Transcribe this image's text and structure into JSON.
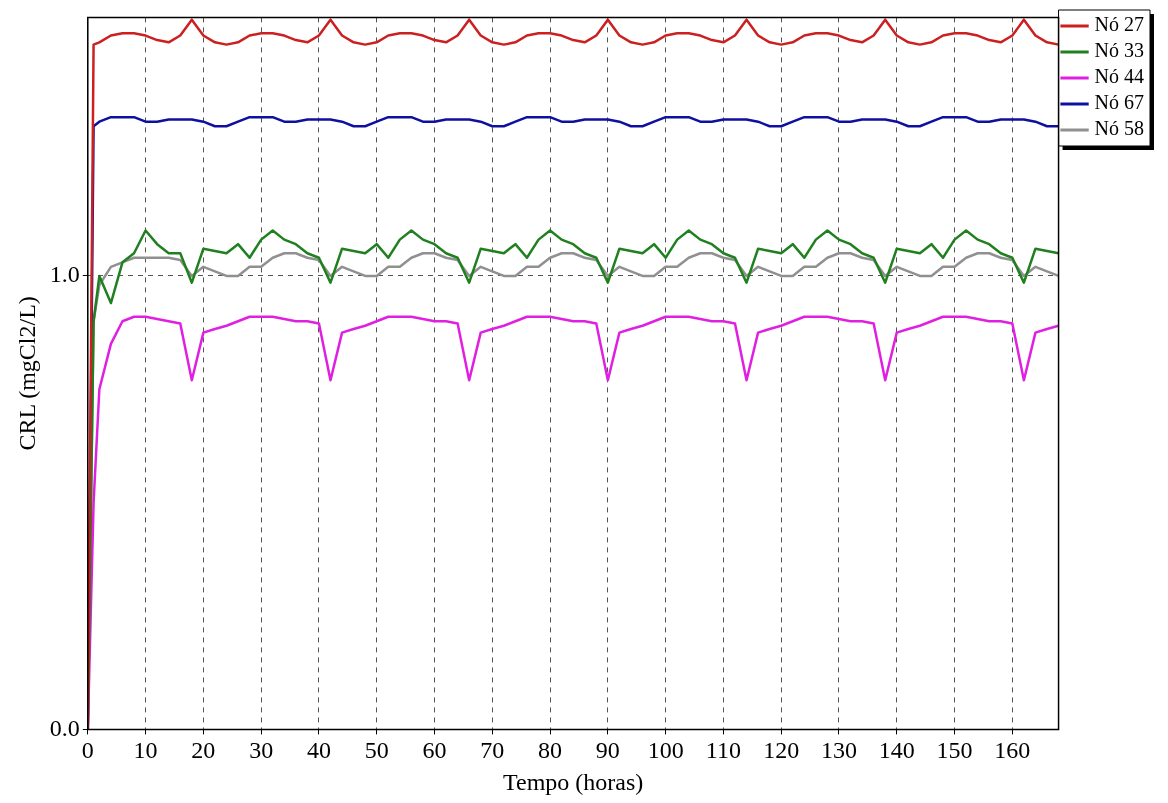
{
  "chart_data": {
    "type": "line",
    "xlabel": "Tempo (horas)",
    "ylabel": "CRL (mgCl2/L)",
    "x": [
      0,
      1,
      2,
      4,
      6,
      8,
      10,
      12,
      14,
      16,
      18,
      20,
      22,
      24,
      26,
      28,
      30,
      32,
      34,
      36,
      38,
      40,
      42,
      44,
      46,
      48,
      50,
      52,
      54,
      56,
      58,
      60,
      62,
      64,
      66,
      68,
      70,
      72,
      74,
      76,
      78,
      80,
      82,
      84,
      86,
      88,
      90,
      92,
      94,
      96,
      98,
      100,
      102,
      104,
      106,
      108,
      110,
      112,
      114,
      116,
      118,
      120,
      122,
      124,
      126,
      128,
      130,
      132,
      134,
      136,
      138,
      140,
      142,
      144,
      146,
      148,
      150,
      152,
      154,
      156,
      158,
      160,
      162,
      164,
      166,
      168
    ],
    "xlim": [
      0,
      168
    ],
    "xticks": [
      0,
      10,
      20,
      30,
      40,
      50,
      60,
      70,
      80,
      90,
      100,
      110,
      120,
      130,
      140,
      150,
      160
    ],
    "ylim": [
      0,
      1.57
    ],
    "yticks": [
      {
        "value": 0,
        "label": "0.0"
      },
      {
        "value": 1,
        "label": "1.0"
      }
    ],
    "grid": true,
    "legend": "right",
    "marker": "none",
    "line_style": "solid",
    "series": [
      {
        "name": "Nó 27",
        "color": "#cc2020",
        "values": [
          0,
          1.51,
          1.515,
          1.53,
          1.535,
          1.535,
          1.53,
          1.52,
          1.515,
          1.53,
          1.565,
          1.53,
          1.515,
          1.51,
          1.515,
          1.53,
          1.535,
          1.535,
          1.53,
          1.52,
          1.515,
          1.53,
          1.565,
          1.53,
          1.515,
          1.51,
          1.515,
          1.53,
          1.535,
          1.535,
          1.53,
          1.52,
          1.515,
          1.53,
          1.565,
          1.53,
          1.515,
          1.51,
          1.515,
          1.53,
          1.535,
          1.535,
          1.53,
          1.52,
          1.515,
          1.53,
          1.565,
          1.53,
          1.515,
          1.51,
          1.515,
          1.53,
          1.535,
          1.535,
          1.53,
          1.52,
          1.515,
          1.53,
          1.565,
          1.53,
          1.515,
          1.51,
          1.515,
          1.53,
          1.535,
          1.535,
          1.53,
          1.52,
          1.515,
          1.53,
          1.565,
          1.53,
          1.515,
          1.51,
          1.515,
          1.53,
          1.535,
          1.535,
          1.53,
          1.52,
          1.515,
          1.53,
          1.565,
          1.53,
          1.515,
          1.51
        ]
      },
      {
        "name": "Nó 33",
        "color": "#208020",
        "values": [
          0,
          0.9,
          1.0,
          0.94,
          1.03,
          1.05,
          1.1,
          1.07,
          1.05,
          1.05,
          0.985,
          1.06,
          1.055,
          1.05,
          1.07,
          1.04,
          1.08,
          1.1,
          1.08,
          1.07,
          1.05,
          1.04,
          0.985,
          1.06,
          1.055,
          1.05,
          1.07,
          1.04,
          1.08,
          1.1,
          1.08,
          1.07,
          1.05,
          1.04,
          0.985,
          1.06,
          1.055,
          1.05,
          1.07,
          1.04,
          1.08,
          1.1,
          1.08,
          1.07,
          1.05,
          1.04,
          0.985,
          1.06,
          1.055,
          1.05,
          1.07,
          1.04,
          1.08,
          1.1,
          1.08,
          1.07,
          1.05,
          1.04,
          0.985,
          1.06,
          1.055,
          1.05,
          1.07,
          1.04,
          1.08,
          1.1,
          1.08,
          1.07,
          1.05,
          1.04,
          0.985,
          1.06,
          1.055,
          1.05,
          1.07,
          1.04,
          1.08,
          1.1,
          1.08,
          1.07,
          1.05,
          1.04,
          0.985,
          1.06,
          1.055,
          1.05
        ]
      },
      {
        "name": "Nó 44",
        "color": "#e020e0",
        "values": [
          0,
          0.5,
          0.75,
          0.85,
          0.9,
          0.91,
          0.91,
          0.905,
          0.9,
          0.895,
          0.77,
          0.875,
          0.883,
          0.89,
          0.9,
          0.91,
          0.91,
          0.91,
          0.905,
          0.9,
          0.9,
          0.895,
          0.77,
          0.875,
          0.883,
          0.89,
          0.9,
          0.91,
          0.91,
          0.91,
          0.905,
          0.9,
          0.9,
          0.895,
          0.77,
          0.875,
          0.883,
          0.89,
          0.9,
          0.91,
          0.91,
          0.91,
          0.905,
          0.9,
          0.9,
          0.895,
          0.77,
          0.875,
          0.883,
          0.89,
          0.9,
          0.91,
          0.91,
          0.91,
          0.905,
          0.9,
          0.9,
          0.895,
          0.77,
          0.875,
          0.883,
          0.89,
          0.9,
          0.91,
          0.91,
          0.91,
          0.905,
          0.9,
          0.9,
          0.895,
          0.77,
          0.875,
          0.883,
          0.89,
          0.9,
          0.91,
          0.91,
          0.91,
          0.905,
          0.9,
          0.9,
          0.895,
          0.77,
          0.875,
          0.883,
          0.89
        ]
      },
      {
        "name": "Nó 67",
        "color": "#1010a0",
        "values": [
          0,
          1.33,
          1.34,
          1.35,
          1.35,
          1.35,
          1.34,
          1.34,
          1.345,
          1.345,
          1.345,
          1.34,
          1.33,
          1.33,
          1.34,
          1.35,
          1.35,
          1.35,
          1.34,
          1.34,
          1.345,
          1.345,
          1.345,
          1.34,
          1.33,
          1.33,
          1.34,
          1.35,
          1.35,
          1.35,
          1.34,
          1.34,
          1.345,
          1.345,
          1.345,
          1.34,
          1.33,
          1.33,
          1.34,
          1.35,
          1.35,
          1.35,
          1.34,
          1.34,
          1.345,
          1.345,
          1.345,
          1.34,
          1.33,
          1.33,
          1.34,
          1.35,
          1.35,
          1.35,
          1.34,
          1.34,
          1.345,
          1.345,
          1.345,
          1.34,
          1.33,
          1.33,
          1.34,
          1.35,
          1.35,
          1.35,
          1.34,
          1.34,
          1.345,
          1.345,
          1.345,
          1.34,
          1.33,
          1.33,
          1.34,
          1.35,
          1.35,
          1.35,
          1.34,
          1.34,
          1.345,
          1.345,
          1.345,
          1.34,
          1.33,
          1.33
        ]
      },
      {
        "name": "Nó 58",
        "color": "#909090",
        "values": [
          0,
          0.9,
          0.98,
          1.02,
          1.03,
          1.04,
          1.04,
          1.04,
          1.04,
          1.035,
          1.0,
          1.02,
          1.01,
          1.0,
          1.0,
          1.02,
          1.02,
          1.04,
          1.05,
          1.05,
          1.04,
          1.035,
          1.0,
          1.02,
          1.01,
          1.0,
          1.0,
          1.02,
          1.02,
          1.04,
          1.05,
          1.05,
          1.04,
          1.035,
          1.0,
          1.02,
          1.01,
          1.0,
          1.0,
          1.02,
          1.02,
          1.04,
          1.05,
          1.05,
          1.04,
          1.035,
          1.0,
          1.02,
          1.01,
          1.0,
          1.0,
          1.02,
          1.02,
          1.04,
          1.05,
          1.05,
          1.04,
          1.035,
          1.0,
          1.02,
          1.01,
          1.0,
          1.0,
          1.02,
          1.02,
          1.04,
          1.05,
          1.05,
          1.04,
          1.035,
          1.0,
          1.02,
          1.01,
          1.0,
          1.0,
          1.02,
          1.02,
          1.04,
          1.05,
          1.05,
          1.04,
          1.035,
          1.0,
          1.02,
          1.01,
          1.0
        ]
      }
    ]
  }
}
